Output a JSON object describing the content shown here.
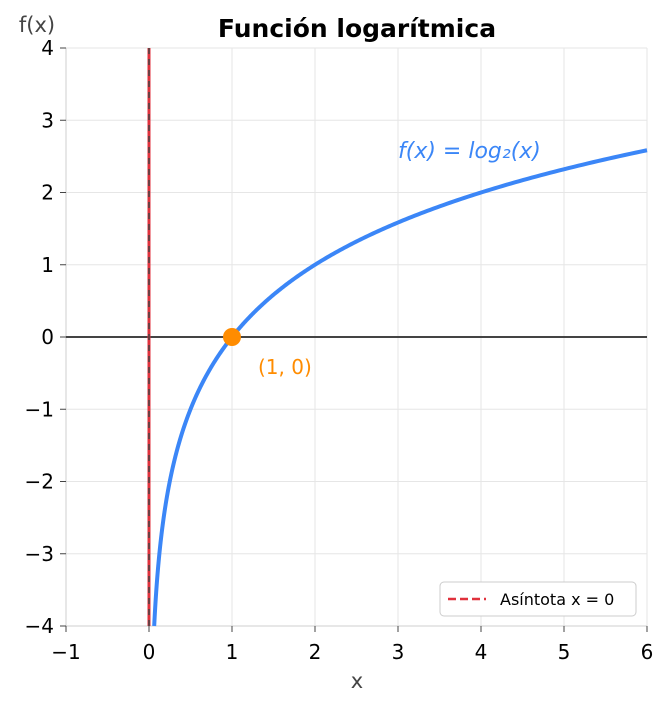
{
  "chart_data": {
    "type": "line",
    "title": "Función logarítmica",
    "xlabel": "x",
    "ylabel": "f(x)",
    "xlim": [
      -1,
      6
    ],
    "ylim": [
      -4,
      4
    ],
    "xticks": [
      -1,
      0,
      1,
      2,
      3,
      4,
      5,
      6
    ],
    "yticks": [
      -4,
      -3,
      -2,
      -1,
      0,
      1,
      2,
      3,
      4
    ],
    "xtick_labels": [
      "−1",
      "0",
      "1",
      "2",
      "3",
      "4",
      "5",
      "6"
    ],
    "ytick_labels": [
      "−4",
      "−3",
      "−2",
      "−1",
      "0",
      "1",
      "2",
      "3",
      "4"
    ],
    "grid": true,
    "series": [
      {
        "name": "f(x) = log₂(x)",
        "function": "log2",
        "domain": [
          0.0625,
          6
        ],
        "color": "#3b86f7"
      }
    ],
    "asymptote": {
      "x": 0,
      "label": "Asíntota x = 0",
      "color": "#e0313c",
      "style": "dashed"
    },
    "highlight_point": {
      "x": 1,
      "y": 0,
      "label": "(1, 0)",
      "color": "#ff8c00"
    },
    "legend_placement": "bottom-right"
  }
}
